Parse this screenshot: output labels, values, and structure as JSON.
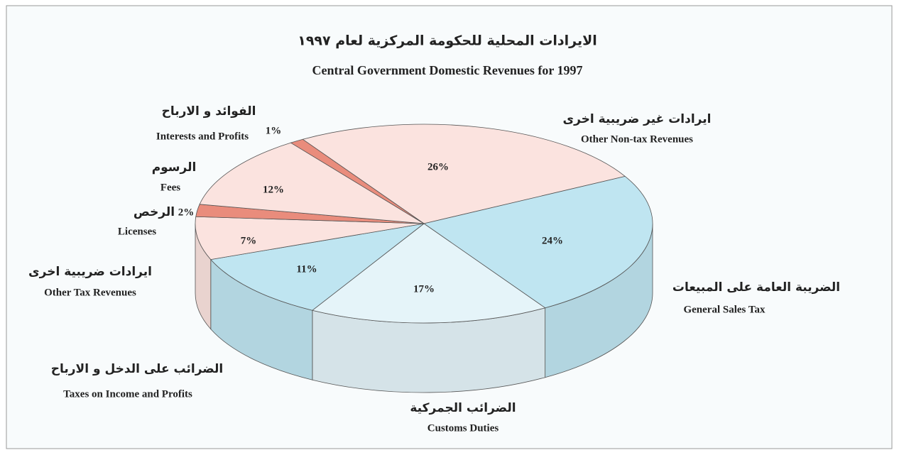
{
  "chart_data": {
    "type": "pie",
    "title": "الايرادات المحلية للحكومة المركزية لعام ١٩٩٧",
    "subtitle": "Central Government Domestic Revenues for 1997",
    "categories": [
      "Other Non-tax Revenues",
      "General Sales Tax",
      "Customs Duties",
      "Taxes on Income and Profits",
      "Other Tax Revenues",
      "Licenses",
      "Fees",
      "Interests and Profits"
    ],
    "categories_ar": [
      "ايرادات غير ضريبية اخرى",
      "الضريبة العامة على المبيعات",
      "الضرائب الجمركية",
      "الضرائب على الدخل و الارباح",
      "ايرادات ضريبية اخرى",
      "الرخص",
      "الرسوم",
      "الفوائد و الارباح"
    ],
    "values": [
      26,
      24,
      17,
      11,
      7,
      2,
      12,
      1
    ],
    "value_labels": [
      "26%",
      "24%",
      "17%",
      "11%",
      "7%",
      "2%",
      "12%",
      "1%"
    ],
    "colors": [
      "#fbe3df",
      "#bfe5f1",
      "#e5f4f9",
      "#bfe5f1",
      "#fbe3df",
      "#e98c7c",
      "#fbe3df",
      "#e98c7c"
    ]
  }
}
